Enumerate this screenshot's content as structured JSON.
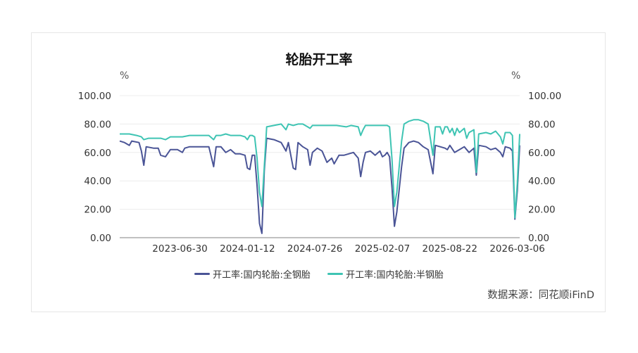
{
  "chart_data": {
    "type": "line",
    "title": "轮胎开工率",
    "y_unit_left": "%",
    "y_unit_right": "%",
    "ylim": [
      0,
      100
    ],
    "yticks": [
      "0.00",
      "20.00",
      "40.00",
      "60.00",
      "80.00",
      "100.00"
    ],
    "ytick_values": [
      0,
      20,
      40,
      60,
      80,
      100
    ],
    "xlim": [
      "2023-01-06",
      "2026-03-13"
    ],
    "xticks": [
      "2023-06-30",
      "2024-01-12",
      "2024-07-26",
      "2025-02-07",
      "2025-08-22",
      "2026-03-06"
    ],
    "grid": true,
    "legend_position": "bottom",
    "colors": {
      "series_1": "#4a5496",
      "series_2": "#3ec4b3"
    },
    "series": [
      {
        "name": "开工率:国内轮胎:全钢胎",
        "color": "#4a5496",
        "points": [
          [
            "2023-01-06",
            68
          ],
          [
            "2023-01-20",
            67
          ],
          [
            "2023-02-03",
            65
          ],
          [
            "2023-02-10",
            68
          ],
          [
            "2023-03-03",
            67
          ],
          [
            "2023-03-10",
            61
          ],
          [
            "2023-03-17",
            51
          ],
          [
            "2023-03-24",
            64
          ],
          [
            "2023-04-14",
            63
          ],
          [
            "2023-04-28",
            63
          ],
          [
            "2023-05-05",
            58
          ],
          [
            "2023-05-19",
            57
          ],
          [
            "2023-06-02",
            62
          ],
          [
            "2023-06-23",
            62
          ],
          [
            "2023-07-07",
            60
          ],
          [
            "2023-07-14",
            63
          ],
          [
            "2023-07-28",
            64
          ],
          [
            "2023-08-25",
            64
          ],
          [
            "2023-09-22",
            64
          ],
          [
            "2023-10-06",
            50
          ],
          [
            "2023-10-13",
            64
          ],
          [
            "2023-10-27",
            64
          ],
          [
            "2023-11-10",
            60
          ],
          [
            "2023-11-24",
            62
          ],
          [
            "2023-12-08",
            59
          ],
          [
            "2023-12-22",
            59
          ],
          [
            "2024-01-05",
            58
          ],
          [
            "2024-01-12",
            49
          ],
          [
            "2024-01-19",
            48
          ],
          [
            "2024-01-26",
            58
          ],
          [
            "2024-02-02",
            58
          ],
          [
            "2024-02-09",
            37
          ],
          [
            "2024-02-16",
            10
          ],
          [
            "2024-02-23",
            3
          ],
          [
            "2024-03-01",
            47
          ],
          [
            "2024-03-08",
            70
          ],
          [
            "2024-03-29",
            69
          ],
          [
            "2024-04-19",
            67
          ],
          [
            "2024-05-03",
            61
          ],
          [
            "2024-05-10",
            67
          ],
          [
            "2024-05-24",
            49
          ],
          [
            "2024-05-31",
            48
          ],
          [
            "2024-06-07",
            67
          ],
          [
            "2024-06-21",
            64
          ],
          [
            "2024-07-05",
            62
          ],
          [
            "2024-07-12",
            51
          ],
          [
            "2024-07-19",
            60
          ],
          [
            "2024-08-02",
            63
          ],
          [
            "2024-08-16",
            61
          ],
          [
            "2024-08-30",
            53
          ],
          [
            "2024-09-13",
            56
          ],
          [
            "2024-09-20",
            52
          ],
          [
            "2024-10-04",
            58
          ],
          [
            "2024-10-18",
            58
          ],
          [
            "2024-11-01",
            59
          ],
          [
            "2024-11-15",
            60
          ],
          [
            "2024-11-29",
            56
          ],
          [
            "2024-12-06",
            43
          ],
          [
            "2024-12-13",
            53
          ],
          [
            "2024-12-20",
            60
          ],
          [
            "2025-01-03",
            61
          ],
          [
            "2025-01-17",
            58
          ],
          [
            "2025-01-31",
            61
          ],
          [
            "2025-02-07",
            57
          ],
          [
            "2025-02-14",
            58
          ],
          [
            "2025-02-21",
            60
          ],
          [
            "2025-02-28",
            57
          ],
          [
            "2025-03-07",
            35
          ],
          [
            "2025-03-14",
            8
          ],
          [
            "2025-03-21",
            18
          ],
          [
            "2025-04-04",
            50
          ],
          [
            "2025-04-11",
            63
          ],
          [
            "2025-04-25",
            67
          ],
          [
            "2025-05-09",
            68
          ],
          [
            "2025-05-23",
            67
          ],
          [
            "2025-06-06",
            64
          ],
          [
            "2025-06-20",
            62
          ],
          [
            "2025-07-04",
            45
          ],
          [
            "2025-07-11",
            65
          ],
          [
            "2025-07-25",
            64
          ],
          [
            "2025-08-08",
            63
          ],
          [
            "2025-08-15",
            62
          ],
          [
            "2025-08-22",
            65
          ],
          [
            "2025-09-05",
            60
          ],
          [
            "2025-09-19",
            62
          ],
          [
            "2025-10-03",
            64
          ],
          [
            "2025-10-17",
            60
          ],
          [
            "2025-10-31",
            63
          ],
          [
            "2025-11-07",
            44
          ],
          [
            "2025-11-14",
            65
          ],
          [
            "2025-12-05",
            64
          ],
          [
            "2025-12-19",
            62
          ],
          [
            "2026-01-02",
            63
          ],
          [
            "2026-01-16",
            60
          ],
          [
            "2026-01-23",
            57
          ],
          [
            "2026-01-30",
            64
          ],
          [
            "2026-02-13",
            63
          ],
          [
            "2026-02-20",
            61
          ],
          [
            "2026-02-27",
            13
          ],
          [
            "2026-03-06",
            33
          ],
          [
            "2026-03-13",
            65
          ]
        ]
      },
      {
        "name": "开工率:国内轮胎:半钢胎",
        "color": "#3ec4b3",
        "points": [
          [
            "2023-01-06",
            73
          ],
          [
            "2023-01-20",
            73
          ],
          [
            "2023-02-03",
            73
          ],
          [
            "2023-02-24",
            72
          ],
          [
            "2023-03-10",
            71
          ],
          [
            "2023-03-17",
            69
          ],
          [
            "2023-03-31",
            70
          ],
          [
            "2023-04-14",
            70
          ],
          [
            "2023-05-05",
            70
          ],
          [
            "2023-05-19",
            69
          ],
          [
            "2023-06-02",
            71
          ],
          [
            "2023-06-23",
            71
          ],
          [
            "2023-07-07",
            71
          ],
          [
            "2023-07-28",
            72
          ],
          [
            "2023-08-25",
            72
          ],
          [
            "2023-09-22",
            72
          ],
          [
            "2023-10-06",
            69
          ],
          [
            "2023-10-13",
            72
          ],
          [
            "2023-10-27",
            72
          ],
          [
            "2023-11-10",
            73
          ],
          [
            "2023-11-24",
            72
          ],
          [
            "2023-12-08",
            72
          ],
          [
            "2023-12-22",
            72
          ],
          [
            "2024-01-05",
            71
          ],
          [
            "2024-01-12",
            69
          ],
          [
            "2024-01-19",
            72
          ],
          [
            "2024-01-26",
            72
          ],
          [
            "2024-02-02",
            71
          ],
          [
            "2024-02-09",
            56
          ],
          [
            "2024-02-16",
            32
          ],
          [
            "2024-02-23",
            22
          ],
          [
            "2024-03-01",
            50
          ],
          [
            "2024-03-08",
            78
          ],
          [
            "2024-03-29",
            79
          ],
          [
            "2024-04-19",
            80
          ],
          [
            "2024-05-03",
            76
          ],
          [
            "2024-05-10",
            80
          ],
          [
            "2024-05-24",
            79
          ],
          [
            "2024-06-07",
            80
          ],
          [
            "2024-06-21",
            80
          ],
          [
            "2024-07-05",
            78
          ],
          [
            "2024-07-12",
            77
          ],
          [
            "2024-07-19",
            79
          ],
          [
            "2024-08-02",
            79
          ],
          [
            "2024-08-30",
            79
          ],
          [
            "2024-09-27",
            79
          ],
          [
            "2024-10-25",
            78
          ],
          [
            "2024-11-08",
            79
          ],
          [
            "2024-11-29",
            78
          ],
          [
            "2024-12-06",
            72
          ],
          [
            "2024-12-13",
            76
          ],
          [
            "2024-12-20",
            79
          ],
          [
            "2025-01-03",
            79
          ],
          [
            "2025-01-31",
            79
          ],
          [
            "2025-02-14",
            79
          ],
          [
            "2025-02-21",
            79
          ],
          [
            "2025-02-28",
            78
          ],
          [
            "2025-03-07",
            55
          ],
          [
            "2025-03-14",
            22
          ],
          [
            "2025-03-21",
            32
          ],
          [
            "2025-04-04",
            68
          ],
          [
            "2025-04-11",
            80
          ],
          [
            "2025-04-25",
            82
          ],
          [
            "2025-05-09",
            83
          ],
          [
            "2025-05-23",
            83
          ],
          [
            "2025-06-06",
            82
          ],
          [
            "2025-06-20",
            80
          ],
          [
            "2025-07-04",
            58
          ],
          [
            "2025-07-11",
            78
          ],
          [
            "2025-07-25",
            78
          ],
          [
            "2025-08-01",
            73
          ],
          [
            "2025-08-08",
            78
          ],
          [
            "2025-08-15",
            78
          ],
          [
            "2025-08-22",
            74
          ],
          [
            "2025-08-29",
            77
          ],
          [
            "2025-09-05",
            72
          ],
          [
            "2025-09-12",
            77
          ],
          [
            "2025-09-19",
            74
          ],
          [
            "2025-10-03",
            77
          ],
          [
            "2025-10-10",
            70
          ],
          [
            "2025-10-17",
            74
          ],
          [
            "2025-10-31",
            76
          ],
          [
            "2025-11-07",
            46
          ],
          [
            "2025-11-14",
            73
          ],
          [
            "2025-12-05",
            74
          ],
          [
            "2025-12-19",
            73
          ],
          [
            "2026-01-02",
            75
          ],
          [
            "2026-01-16",
            71
          ],
          [
            "2026-01-23",
            66
          ],
          [
            "2026-01-30",
            74
          ],
          [
            "2026-02-13",
            74
          ],
          [
            "2026-02-20",
            72
          ],
          [
            "2026-02-27",
            14
          ],
          [
            "2026-03-06",
            38
          ],
          [
            "2026-03-13",
            73
          ]
        ]
      }
    ]
  },
  "source": "数据来源：同花顺iFinD"
}
